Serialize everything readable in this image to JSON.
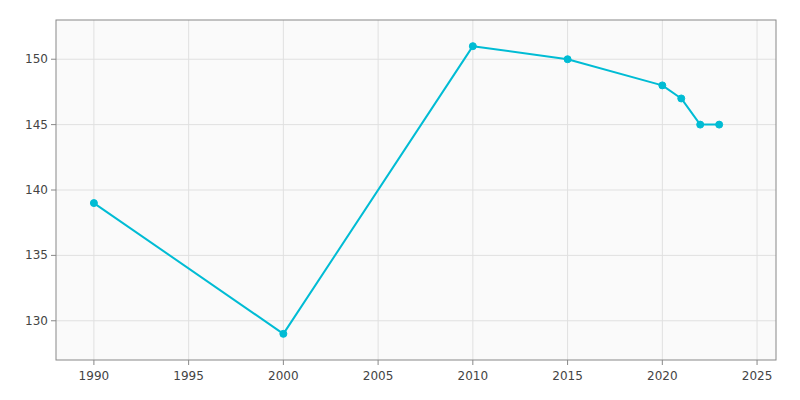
{
  "chart_data": {
    "type": "line",
    "x": [
      1990,
      2000,
      2010,
      2015,
      2020,
      2021,
      2022,
      2023
    ],
    "values": [
      139,
      129,
      151,
      150,
      148,
      147,
      145,
      145
    ],
    "color": "#00BCD4",
    "marker": "circle",
    "xlim": [
      1988,
      2026
    ],
    "ylim": [
      127,
      153
    ],
    "xticks": [
      1990,
      1995,
      2000,
      2005,
      2010,
      2015,
      2020,
      2025
    ],
    "yticks": [
      130,
      135,
      140,
      145,
      150
    ],
    "grid": true
  }
}
